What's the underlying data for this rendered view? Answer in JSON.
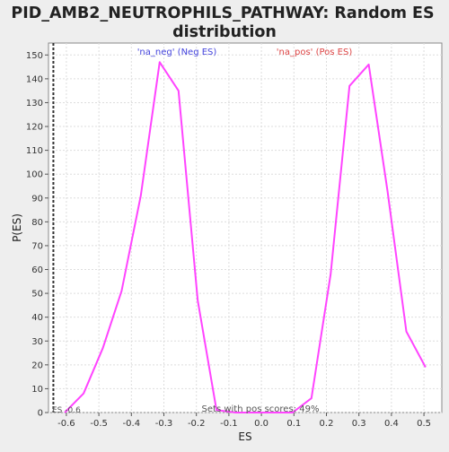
{
  "chart_data": {
    "type": "line",
    "title_lines": [
      "PID_AMB2_NEUTROPHILS_PATHWAY: Random ES",
      "distribution"
    ],
    "xlabel": "ES",
    "ylabel": "P(ES)",
    "xlim": [
      -0.655,
      0.555
    ],
    "ylim": [
      0,
      155
    ],
    "xticks": [
      -0.6,
      -0.5,
      -0.4,
      -0.3,
      -0.2,
      -0.1,
      0.0,
      0.1,
      0.2,
      0.3,
      0.4,
      0.5
    ],
    "xtick_labels": [
      "-0.6",
      "-0.5",
      "-0.4",
      "-0.3",
      "-0.2",
      "-0.1",
      "0.0",
      "0.1",
      "0.2",
      "0.3",
      "0.4",
      "0.5"
    ],
    "yticks": [
      0,
      10,
      20,
      30,
      40,
      50,
      60,
      70,
      80,
      90,
      100,
      110,
      120,
      130,
      140,
      150
    ],
    "grid": true,
    "line_color": "#ff44ff",
    "series": [
      {
        "x": [
          -0.605,
          -0.547,
          -0.488,
          -0.43,
          -0.371,
          -0.313,
          -0.255,
          -0.196,
          -0.138,
          -0.079,
          -0.021,
          0.037,
          0.096,
          0.154,
          0.213,
          0.271,
          0.33,
          0.388,
          0.446,
          0.505
        ],
        "y": [
          0,
          8,
          27,
          51,
          91,
          147,
          135,
          47,
          1,
          0,
          0,
          0,
          0,
          6,
          58,
          137,
          146,
          93,
          34,
          19
        ]
      }
    ],
    "annotations": {
      "neg_label": "'na_neg' (Neg ES)",
      "neg_color": "#4444dd",
      "pos_label": "'na_pos' (Pos ES)",
      "pos_color": "#dd4444",
      "es_marker_label": "ES -0.6",
      "es_marker_x": -0.64,
      "pos_scores_text": "Sets with pos scores: 49%"
    }
  }
}
